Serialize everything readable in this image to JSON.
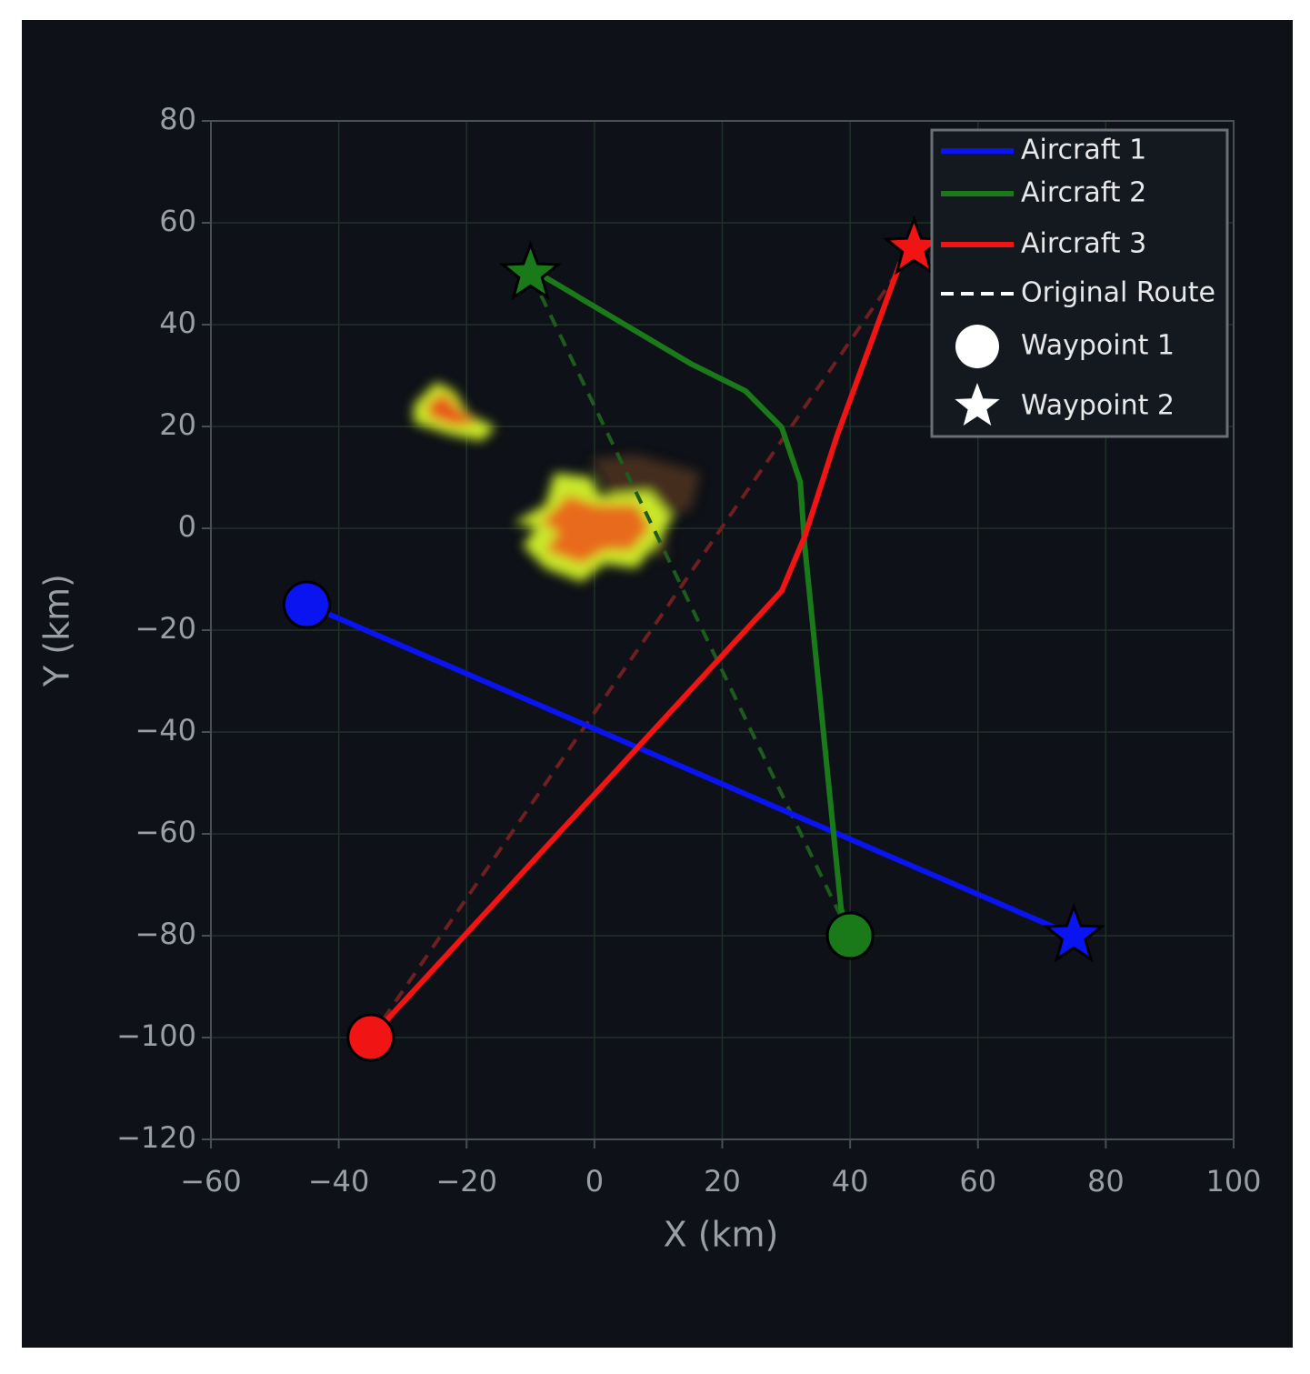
{
  "chart_data": {
    "type": "line",
    "xlabel": "X (km)",
    "ylabel": "Y (km)",
    "xlim": [
      -60,
      100
    ],
    "ylim": [
      -120,
      80
    ],
    "xticks": [
      {
        "value": -60,
        "label": "−60"
      },
      {
        "value": -40,
        "label": "−40"
      },
      {
        "value": -20,
        "label": "−20"
      },
      0,
      20,
      40,
      60,
      80,
      100
    ],
    "yticks": [
      {
        "value": -120,
        "label": "−120"
      },
      {
        "value": -100,
        "label": "−100"
      },
      {
        "value": -80,
        "label": "−80"
      },
      {
        "value": -60,
        "label": "−60"
      },
      {
        "value": -40,
        "label": "−40"
      },
      {
        "value": -20,
        "label": "−20"
      },
      0,
      20,
      40,
      60,
      80
    ],
    "grid": true,
    "legend": "upper right",
    "series": [
      {
        "name": "Aircraft 1",
        "color": "#0a14f0",
        "x": [
          -45,
          75
        ],
        "y": [
          -15,
          -80
        ]
      },
      {
        "name": "Aircraft 2",
        "color": "#1a7a1a",
        "x": [
          40,
          38.6,
          32.9,
          32.2,
          29.3,
          23.6,
          15.1,
          -7.7,
          -10
        ],
        "y": [
          -80,
          -74.8,
          -3.4,
          9.1,
          19.8,
          27,
          32.3,
          49.3,
          50
        ]
      },
      {
        "name": "Aircraft 3",
        "color": "#f01414",
        "x": [
          -35,
          29.3,
          32.9,
          37.9,
          47.8,
          50
        ],
        "y": [
          -100,
          -12.3,
          -1.6,
          18,
          52,
          55
        ]
      }
    ],
    "route_legend": "Original Route",
    "routes": [
      {
        "color": "#1d5c1d",
        "x": [
          40,
          -10
        ],
        "y": [
          -80,
          50
        ]
      },
      {
        "color": "#6e1f1f",
        "x": [
          -35,
          50
        ],
        "y": [
          -100,
          55
        ]
      }
    ],
    "markers": [
      {
        "name": "Waypoint 1",
        "shape": "circle"
      },
      {
        "name": "Waypoint 2",
        "shape": "star"
      }
    ]
  }
}
